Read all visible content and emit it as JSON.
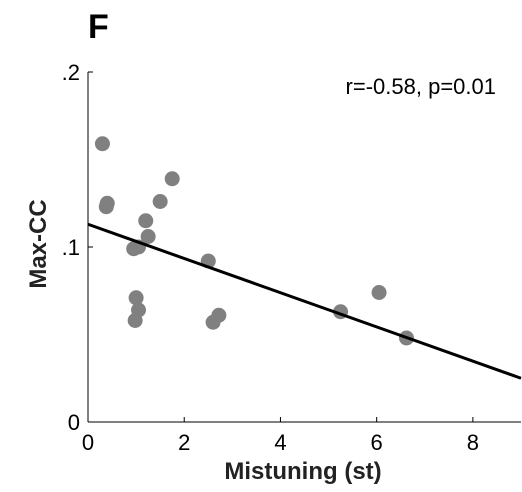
{
  "panel": {
    "label": "F"
  },
  "chart_data": {
    "type": "scatter",
    "title": "",
    "xlabel": "Mistuning (st)",
    "ylabel": "Max-CC",
    "xlim": [
      0,
      9
    ],
    "ylim": [
      0,
      0.2
    ],
    "x_ticks": [
      0,
      2,
      4,
      6,
      8
    ],
    "x_tick_labels": [
      "0",
      "2",
      "4",
      "6",
      "8"
    ],
    "y_ticks": [
      0,
      0.1,
      0.2
    ],
    "y_tick_labels": [
      "0",
      ".1",
      ".2"
    ],
    "grid": false,
    "marker_color": "#808080",
    "line_color": "#000000",
    "annotation": "r=-0.58, p=0.01",
    "points": [
      {
        "x": 0.3,
        "y": 0.159
      },
      {
        "x": 0.38,
        "y": 0.123
      },
      {
        "x": 0.4,
        "y": 0.125
      },
      {
        "x": 0.95,
        "y": 0.099
      },
      {
        "x": 1.05,
        "y": 0.1
      },
      {
        "x": 1.2,
        "y": 0.115
      },
      {
        "x": 1.25,
        "y": 0.106
      },
      {
        "x": 1.5,
        "y": 0.126
      },
      {
        "x": 1.75,
        "y": 0.139
      },
      {
        "x": 1.0,
        "y": 0.071
      },
      {
        "x": 1.05,
        "y": 0.064
      },
      {
        "x": 0.98,
        "y": 0.058
      },
      {
        "x": 2.5,
        "y": 0.092
      },
      {
        "x": 2.6,
        "y": 0.057
      },
      {
        "x": 2.72,
        "y": 0.061
      },
      {
        "x": 5.25,
        "y": 0.063
      },
      {
        "x": 6.05,
        "y": 0.074
      },
      {
        "x": 6.62,
        "y": 0.048
      }
    ],
    "fit_line": {
      "x": [
        0,
        9
      ],
      "y": [
        0.113,
        0.025
      ]
    }
  }
}
